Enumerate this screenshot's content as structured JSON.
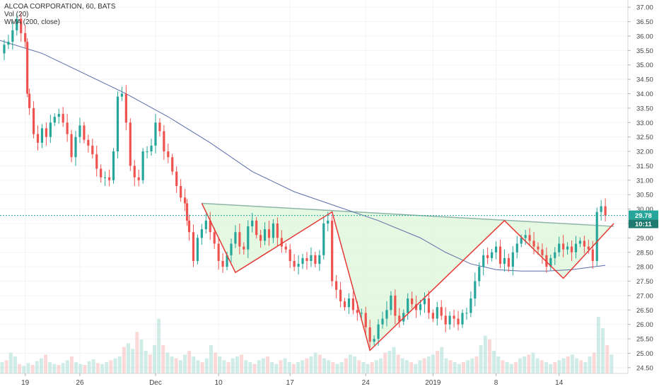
{
  "header": {
    "symbol_line": "ALCOA CORPORATION, 60, BATS",
    "volume_line": "Vol (20)",
    "wma_line": "WMA (200, close)"
  },
  "badges": {
    "price": "29.78",
    "countdown": "10:11"
  },
  "colors": {
    "up": "#26a69a",
    "down": "#ef5350",
    "wma": "#5b6ea8",
    "pattern_line": "#e53935",
    "pattern_fill": "#dcf5d8",
    "neckline": "#8fb4a8",
    "price_line": "#26a69a",
    "countdown_bg": "#1e7a6e"
  },
  "chart_data": {
    "type": "candlestick",
    "title": "ALCOA CORPORATION, 60, BATS",
    "y_range": [
      24.3,
      37.25
    ],
    "y_ticks": [
      "24.50",
      "25.00",
      "25.50",
      "26.00",
      "26.50",
      "27.00",
      "27.50",
      "28.00",
      "28.50",
      "29.00",
      "29.50",
      "30.00",
      "30.50",
      "31.00",
      "31.50",
      "32.00",
      "32.50",
      "33.00",
      "33.50",
      "34.00",
      "34.50",
      "35.00",
      "35.50",
      "36.00",
      "36.50",
      "37.00"
    ],
    "x_range": [
      0,
      146
    ],
    "x_ticks": [
      {
        "label": "19",
        "x": 6
      },
      {
        "label": "26",
        "x": 19
      },
      {
        "label": "Dec",
        "x": 37
      },
      {
        "label": "10",
        "x": 52
      },
      {
        "label": "17",
        "x": 69
      },
      {
        "label": "24",
        "x": 87
      },
      {
        "label": "2019",
        "x": 103
      },
      {
        "label": "8",
        "x": 118
      },
      {
        "label": "14",
        "x": 133
      }
    ],
    "price_path": [
      [
        0,
        35.4
      ],
      [
        1,
        35.7
      ],
      [
        2,
        35.8
      ],
      [
        3,
        36.2
      ],
      [
        4,
        36.6
      ],
      [
        5,
        36.1
      ],
      [
        6,
        35.8
      ],
      [
        6.5,
        34.0
      ],
      [
        7,
        33.5
      ],
      [
        8,
        32.6
      ],
      [
        9,
        32.3
      ],
      [
        10,
        32.8
      ],
      [
        11,
        32.5
      ],
      [
        12,
        33.0
      ],
      [
        13,
        33.2
      ],
      [
        14,
        33.3
      ],
      [
        15,
        33.0
      ],
      [
        16,
        32.6
      ],
      [
        17,
        31.8
      ],
      [
        18,
        32.5
      ],
      [
        19,
        32.9
      ],
      [
        20,
        32.4
      ],
      [
        21,
        32.2
      ],
      [
        22,
        31.9
      ],
      [
        23,
        31.4
      ],
      [
        24,
        31.1
      ],
      [
        25,
        31.1
      ],
      [
        26,
        31.0
      ],
      [
        27,
        32.0
      ],
      [
        28,
        33.9
      ],
      [
        29,
        34.0
      ],
      [
        30,
        33.0
      ],
      [
        31,
        31.5
      ],
      [
        32,
        31.1
      ],
      [
        33,
        31.0
      ],
      [
        34,
        32.0
      ],
      [
        35,
        32.0
      ],
      [
        36,
        32.2
      ],
      [
        37,
        33.0
      ],
      [
        38,
        32.7
      ],
      [
        39,
        32.0
      ],
      [
        40,
        31.8
      ],
      [
        41,
        31.3
      ],
      [
        42,
        30.8
      ],
      [
        43,
        30.4
      ],
      [
        44,
        30.2
      ],
      [
        44.5,
        29.6
      ],
      [
        45,
        29.2
      ],
      [
        46,
        28.2
      ],
      [
        47,
        29.0
      ],
      [
        48,
        29.3
      ],
      [
        49,
        29.6
      ],
      [
        50,
        29.2
      ],
      [
        51,
        28.8
      ],
      [
        52,
        28.2
      ],
      [
        53,
        28.0
      ],
      [
        54,
        28.4
      ],
      [
        55,
        28.8
      ],
      [
        56,
        29.2
      ],
      [
        57,
        28.7
      ],
      [
        58,
        28.6
      ],
      [
        59,
        29.4
      ],
      [
        60,
        29.6
      ],
      [
        61,
        29.1
      ],
      [
        62,
        28.9
      ],
      [
        63,
        29.3
      ],
      [
        64,
        29.0
      ],
      [
        65,
        29.5
      ],
      [
        66,
        29.0
      ],
      [
        67,
        28.7
      ],
      [
        68,
        28.6
      ],
      [
        69,
        28.2
      ],
      [
        70,
        28.0
      ],
      [
        71,
        28.1
      ],
      [
        72,
        28.3
      ],
      [
        73,
        28.2
      ],
      [
        74,
        28.4
      ],
      [
        75,
        28.1
      ],
      [
        76,
        28.4
      ],
      [
        77,
        29.5
      ],
      [
        78,
        29.6
      ],
      [
        79,
        27.5
      ],
      [
        80,
        27.2
      ],
      [
        81,
        26.8
      ],
      [
        82,
        26.6
      ],
      [
        83,
        26.9
      ],
      [
        84,
        26.5
      ],
      [
        85,
        26.4
      ],
      [
        86,
        26.4
      ],
      [
        87,
        25.9
      ],
      [
        88,
        25.4
      ],
      [
        89,
        25.5
      ],
      [
        90,
        26.0
      ],
      [
        91,
        26.2
      ],
      [
        92,
        26.5
      ],
      [
        93,
        27.0
      ],
      [
        94,
        26.3
      ],
      [
        95,
        26.1
      ],
      [
        96,
        26.4
      ],
      [
        97,
        26.9
      ],
      [
        98,
        26.7
      ],
      [
        99,
        26.5
      ],
      [
        100,
        26.7
      ],
      [
        101,
        26.9
      ],
      [
        102,
        26.4
      ],
      [
        103,
        26.2
      ],
      [
        104,
        26.6
      ],
      [
        105,
        26.3
      ],
      [
        106,
        26.0
      ],
      [
        107,
        26.3
      ],
      [
        108,
        26.2
      ],
      [
        109,
        26.0
      ],
      [
        110,
        26.4
      ],
      [
        111,
        26.4
      ],
      [
        112,
        26.9
      ],
      [
        113,
        27.5
      ],
      [
        114,
        28.0
      ],
      [
        115,
        28.4
      ],
      [
        116,
        28.3
      ],
      [
        117,
        28.5
      ],
      [
        118,
        28.7
      ],
      [
        119,
        28.1
      ],
      [
        120,
        28.3
      ],
      [
        121,
        28.0
      ],
      [
        122,
        28.5
      ],
      [
        123,
        28.8
      ],
      [
        124,
        29.0
      ],
      [
        125,
        29.1
      ],
      [
        126,
        28.9
      ],
      [
        127,
        28.7
      ],
      [
        128,
        28.6
      ],
      [
        129,
        28.4
      ],
      [
        130,
        28.0
      ],
      [
        131,
        28.3
      ],
      [
        132,
        28.5
      ],
      [
        133,
        28.8
      ],
      [
        134,
        28.6
      ],
      [
        135,
        28.7
      ],
      [
        136,
        28.5
      ],
      [
        137,
        28.8
      ],
      [
        138,
        28.9
      ],
      [
        139,
        28.7
      ],
      [
        140,
        28.6
      ],
      [
        141,
        28.2
      ],
      [
        142,
        29.9
      ],
      [
        143,
        30.1
      ],
      [
        144,
        29.78
      ]
    ],
    "wma_path": [
      [
        0,
        35.85
      ],
      [
        10,
        35.4
      ],
      [
        20,
        34.7
      ],
      [
        30,
        34.0
      ],
      [
        40,
        33.2
      ],
      [
        50,
        32.3
      ],
      [
        60,
        31.3
      ],
      [
        70,
        30.6
      ],
      [
        80,
        30.1
      ],
      [
        90,
        29.6
      ],
      [
        100,
        29.0
      ],
      [
        106,
        28.5
      ],
      [
        112,
        28.1
      ],
      [
        118,
        27.9
      ],
      [
        124,
        27.85
      ],
      [
        130,
        27.85
      ],
      [
        136,
        27.9
      ],
      [
        144,
        28.05
      ]
    ],
    "pattern_fill_path": [
      [
        48,
        30.2
      ],
      [
        56,
        27.8
      ],
      [
        79,
        29.9
      ],
      [
        88,
        25.1
      ],
      [
        120,
        29.6
      ],
      [
        134,
        27.6
      ],
      [
        146,
        29.5
      ]
    ],
    "pattern_zigzag": [
      [
        48,
        30.2
      ],
      [
        56,
        27.8
      ],
      [
        79,
        29.9
      ],
      [
        88,
        25.1
      ],
      [
        120,
        29.6
      ],
      [
        134,
        27.6
      ],
      [
        146,
        29.5
      ]
    ],
    "neckline": [
      [
        48,
        30.2
      ],
      [
        146,
        29.4
      ]
    ],
    "last_price": 29.78,
    "volume": [
      12,
      14,
      22,
      18,
      10,
      8,
      11,
      9,
      13,
      16,
      20,
      12,
      10,
      9,
      11,
      14,
      18,
      12,
      10,
      9,
      13,
      15,
      11,
      10,
      12,
      14,
      16,
      18,
      28,
      32,
      26,
      44,
      36,
      24,
      20,
      30,
      58,
      30,
      22,
      18,
      16,
      14,
      20,
      24,
      18,
      14,
      12,
      16,
      30,
      22,
      18,
      14,
      12,
      16,
      18,
      20,
      14,
      12,
      10,
      14,
      16,
      18,
      12,
      10,
      14,
      16,
      12,
      10,
      12,
      14,
      16,
      18,
      22,
      20,
      16,
      14,
      12,
      10,
      12,
      16,
      20,
      18,
      14,
      12,
      10,
      12,
      14,
      16,
      22,
      24,
      28,
      20,
      16,
      14,
      12,
      10,
      14,
      16,
      18,
      20,
      24,
      28,
      16,
      14,
      12,
      10,
      12,
      14,
      16,
      18,
      30,
      40,
      36,
      24,
      18,
      14,
      12,
      10,
      12,
      16,
      18,
      20,
      22,
      16,
      14,
      12,
      10,
      12,
      14,
      16,
      18,
      20,
      16,
      14,
      12,
      18,
      22,
      60,
      48,
      30,
      20
    ],
    "volume_max": 60
  }
}
